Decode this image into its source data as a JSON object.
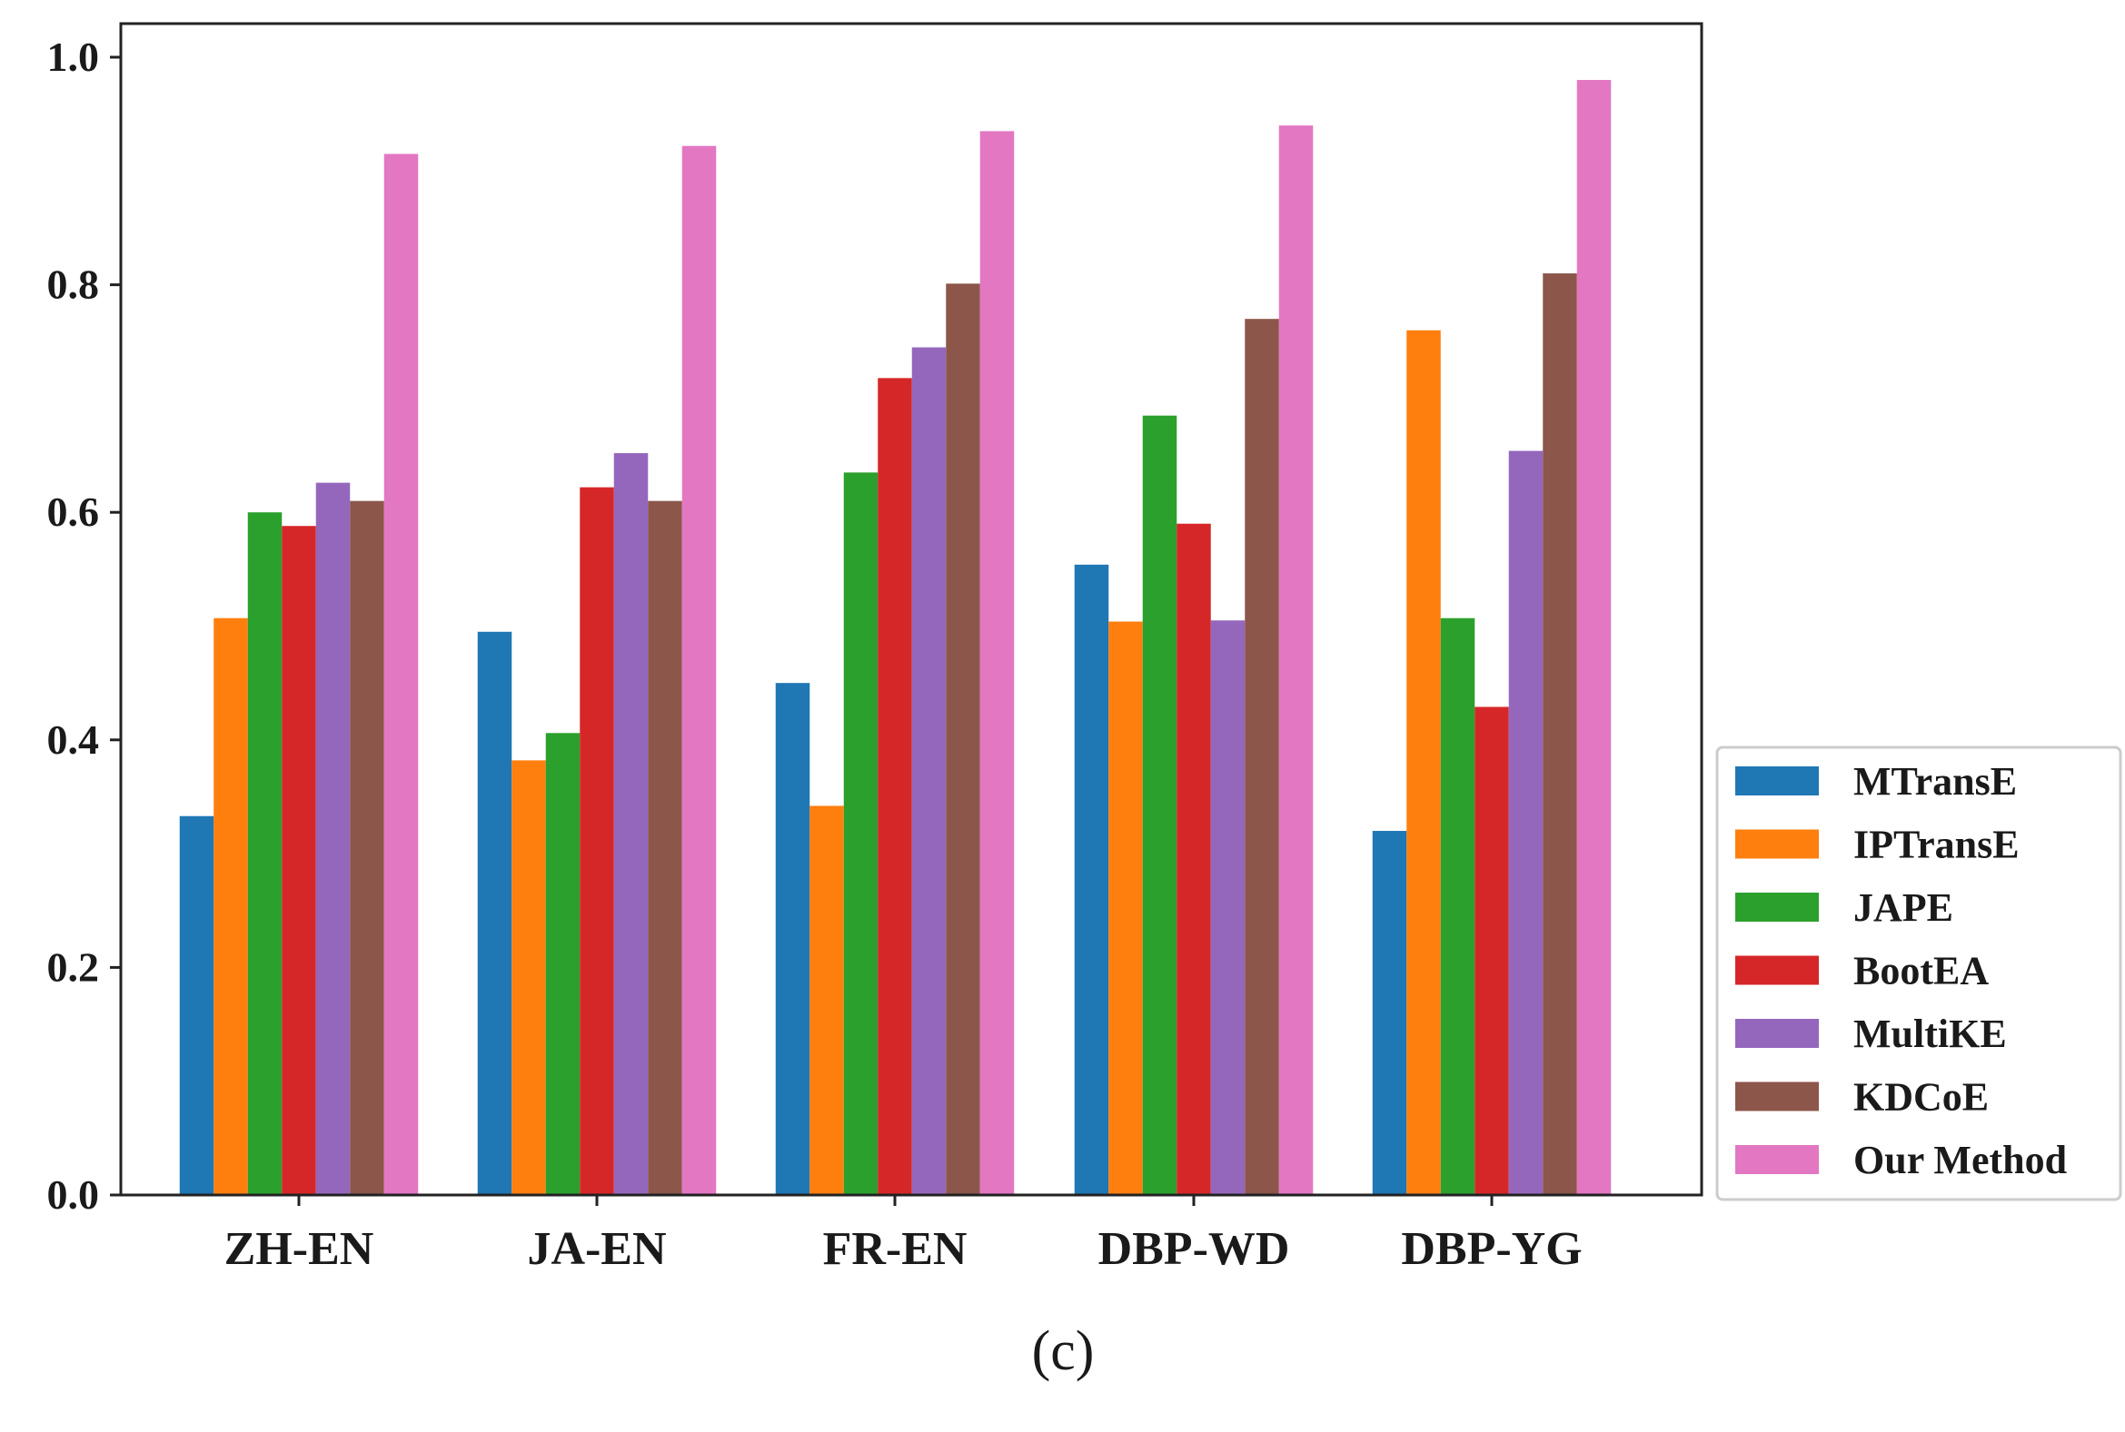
{
  "chart_data": {
    "type": "bar",
    "categories": [
      "ZH-EN",
      "JA-EN",
      "FR-EN",
      "DBP-WD",
      "DBP-YG"
    ],
    "series": [
      {
        "name": "MTransE",
        "color": "#1f77b4",
        "values": [
          0.333,
          0.495,
          0.45,
          0.554,
          0.32
        ]
      },
      {
        "name": "IPTransE",
        "color": "#ff7f0e",
        "values": [
          0.507,
          0.382,
          0.342,
          0.504,
          0.76
        ]
      },
      {
        "name": "JAPE",
        "color": "#2ca02c",
        "values": [
          0.6,
          0.406,
          0.635,
          0.685,
          0.507
        ]
      },
      {
        "name": "BootEA",
        "color": "#d62728",
        "values": [
          0.588,
          0.622,
          0.718,
          0.59,
          0.429
        ]
      },
      {
        "name": "MultiKE",
        "color": "#9467bd",
        "values": [
          0.626,
          0.652,
          0.745,
          0.505,
          0.654
        ]
      },
      {
        "name": "KDCoE",
        "color": "#8c564b",
        "values": [
          0.61,
          0.61,
          0.801,
          0.77,
          0.81
        ]
      },
      {
        "name": "Our Method",
        "color": "#e377c2",
        "values": [
          0.915,
          0.922,
          0.935,
          0.94,
          0.98
        ]
      }
    ],
    "yticks": [
      "0.0",
      "0.2",
      "0.4",
      "0.6",
      "0.8",
      "1.0"
    ],
    "ylim": [
      0,
      1.0
    ],
    "grid": false,
    "legend_position": "right, outside plot area",
    "caption": "(c)"
  }
}
